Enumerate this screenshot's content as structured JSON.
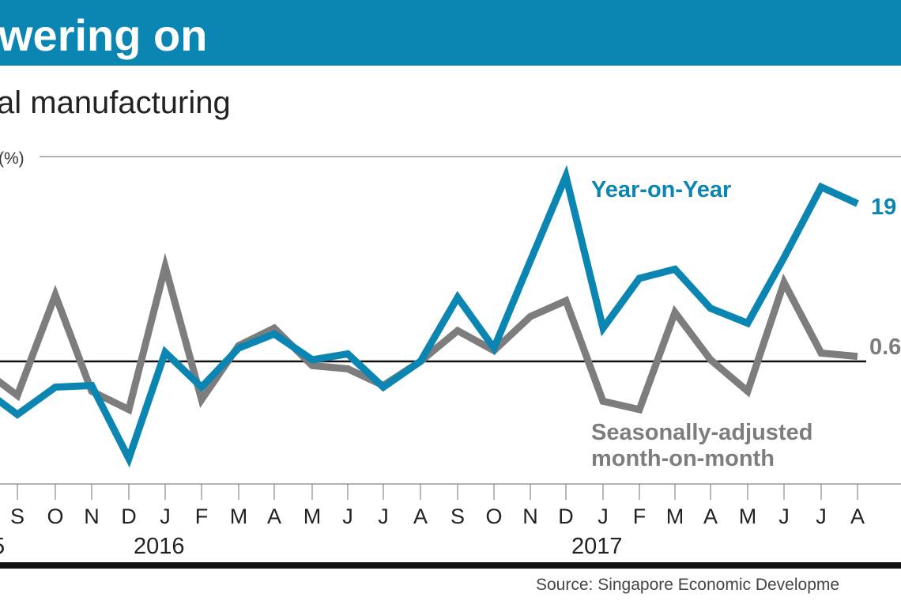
{
  "header": {
    "title": "wering on",
    "subtitle": "al manufacturing",
    "band_color": "#0b85b2"
  },
  "chart_data": {
    "type": "line",
    "ylabel": "(%)",
    "x": [
      "S",
      "O",
      "N",
      "D",
      "J",
      "F",
      "M",
      "A",
      "M",
      "J",
      "J",
      "A",
      "S",
      "O",
      "N",
      "D",
      "J",
      "F",
      "M",
      "A",
      "M",
      "J",
      "J",
      "A"
    ],
    "year_labels": [
      {
        "label": "5",
        "at_index": 0
      },
      {
        "label": "2016",
        "at_index": 4
      },
      {
        "label": "2017",
        "at_index": 16
      }
    ],
    "zero_line": 0,
    "series": [
      {
        "name": "Year-on-Year",
        "color": "#0b85b2",
        "end_label": "19",
        "values": [
          -6.4,
          -3.1,
          -2.9,
          -11.7,
          1.1,
          -3.1,
          1.6,
          3.3,
          0.2,
          0.9,
          -3.1,
          0,
          7.7,
          1.6,
          12.1,
          22.3,
          4.0,
          10.0,
          11.1,
          6.4,
          4.6,
          12.5,
          21.0,
          19.0
        ]
      },
      {
        "name": "Seasonally-adjusted month-on-month",
        "name_lines": [
          "Seasonally-adjusted",
          "month-on-month"
        ],
        "color": "#7d7d7d",
        "end_label": "0.6",
        "values": [
          -4.1,
          8.0,
          -3.6,
          -5.8,
          11.4,
          -4.6,
          1.9,
          4.0,
          -0.5,
          -0.9,
          -2.9,
          0,
          3.7,
          1.3,
          5.4,
          7.3,
          -4.8,
          -5.8,
          5.9,
          0.2,
          -3.6,
          9.5,
          1.0,
          0.6
        ]
      }
    ],
    "grid": false,
    "legend": "inline labels"
  },
  "footer": {
    "source": "Source: Singapore Economic Developme"
  }
}
